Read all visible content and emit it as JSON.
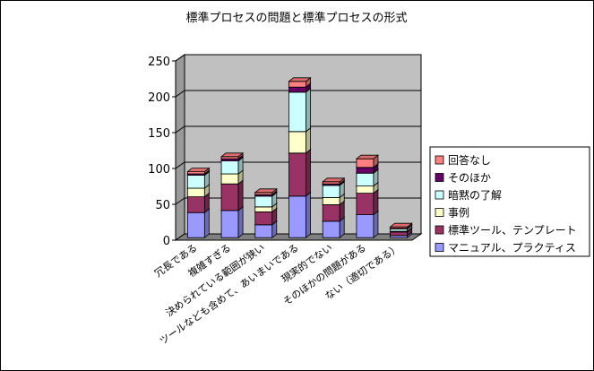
{
  "chart_data": {
    "type": "bar",
    "stacked": true,
    "three_d": true,
    "title": "標準プロセスの問題と標準プロセスの形式",
    "categories": [
      "冗長である",
      "複雑すぎる",
      "決められている範囲が狭い",
      "ツールなども含めて、あいまいである",
      "現実的でない",
      "そのほかの問題がある",
      "ない（適切である）"
    ],
    "series": [
      {
        "name": "マニュアル、プラクティス",
        "color": "#9999ff",
        "values": [
          35,
          38,
          18,
          58,
          23,
          32,
          3
        ]
      },
      {
        "name": "標準ツール、テンプレート",
        "color": "#993366",
        "values": [
          22,
          37,
          18,
          60,
          23,
          30,
          5
        ]
      },
      {
        "name": "事例",
        "color": "#ffffcc",
        "values": [
          12,
          14,
          7,
          30,
          10,
          10,
          1
        ]
      },
      {
        "name": "暗黙の了解",
        "color": "#ccffff",
        "values": [
          18,
          18,
          15,
          55,
          17,
          18,
          3
        ]
      },
      {
        "name": "そのほか",
        "color": "#660066",
        "values": [
          2,
          3,
          2,
          7,
          2,
          8,
          1
        ]
      },
      {
        "name": "回答なし",
        "color": "#ff8080",
        "values": [
          3,
          3,
          3,
          8,
          3,
          12,
          2
        ]
      }
    ],
    "y_ticks": [
      0,
      50,
      100,
      150,
      200,
      250
    ],
    "ylim": [
      0,
      250
    ],
    "grid": true,
    "legend_position": "right",
    "wall_color": "#c0c0c0"
  }
}
